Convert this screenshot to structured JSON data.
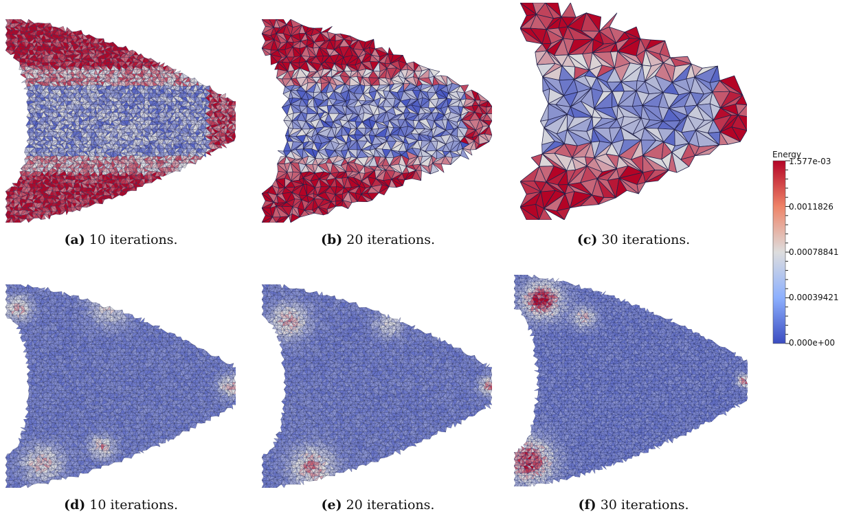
{
  "panels": [
    {
      "id": "a",
      "label": "(a)",
      "caption": "10 iterations.",
      "scheme": "hot"
    },
    {
      "id": "b",
      "label": "(b)",
      "caption": "20 iterations.",
      "scheme": "hot"
    },
    {
      "id": "c",
      "label": "(c)",
      "caption": "30 iterations.",
      "scheme": "hot"
    },
    {
      "id": "d",
      "label": "(d)",
      "caption": "10 iterations.",
      "scheme": "cool"
    },
    {
      "id": "e",
      "label": "(e)",
      "caption": "20 iterations.",
      "scheme": "cool"
    },
    {
      "id": "f",
      "label": "(f)",
      "caption": "30 iterations.",
      "scheme": "cool"
    }
  ],
  "legend": {
    "title": "Energy",
    "ticks": [
      "1.577e-03",
      "0.0011826",
      "0.00078841",
      "0.00039421",
      "0.000e+00"
    ],
    "colors": {
      "high": "#b40426",
      "mid": "#dddddd",
      "low": "#3b4cc0"
    }
  }
}
